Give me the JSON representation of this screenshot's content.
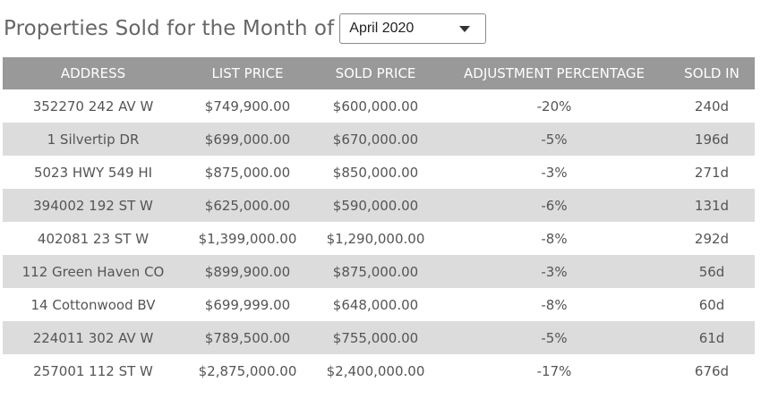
{
  "header": {
    "title": "Properties Sold for the Month of",
    "month_select": {
      "selected": "April 2020",
      "icon": "chevron-down-icon"
    }
  },
  "table": {
    "columns": [
      "ADDRESS",
      "LIST PRICE",
      "SOLD PRICE",
      "ADJUSTMENT PERCENTAGE",
      "SOLD IN"
    ],
    "rows": [
      [
        "352270 242 AV W",
        "$749,900.00",
        "$600,000.00",
        "-20%",
        "240d"
      ],
      [
        "1 Silvertip DR",
        "$699,000.00",
        "$670,000.00",
        "-5%",
        "196d"
      ],
      [
        "5023 HWY 549 HI",
        "$875,000.00",
        "$850,000.00",
        "-3%",
        "271d"
      ],
      [
        "394002 192 ST W",
        "$625,000.00",
        "$590,000.00",
        "-6%",
        "131d"
      ],
      [
        "402081 23 ST W",
        "$1,399,000.00",
        "$1,290,000.00",
        "-8%",
        "292d"
      ],
      [
        "112 Green Haven CO",
        "$899,900.00",
        "$875,000.00",
        "-3%",
        "56d"
      ],
      [
        "14 Cottonwood BV",
        "$699,999.00",
        "$648,000.00",
        "-8%",
        "60d"
      ],
      [
        "224011 302 AV W",
        "$789,500.00",
        "$755,000.00",
        "-5%",
        "61d"
      ],
      [
        "257001 112 ST W",
        "$2,875,000.00",
        "$2,400,000.00",
        "-17%",
        "676d"
      ]
    ]
  },
  "colors": {
    "header_bg": "#999999",
    "stripe_bg": "#dcdcdc",
    "text": "#555555",
    "title": "#666666"
  }
}
